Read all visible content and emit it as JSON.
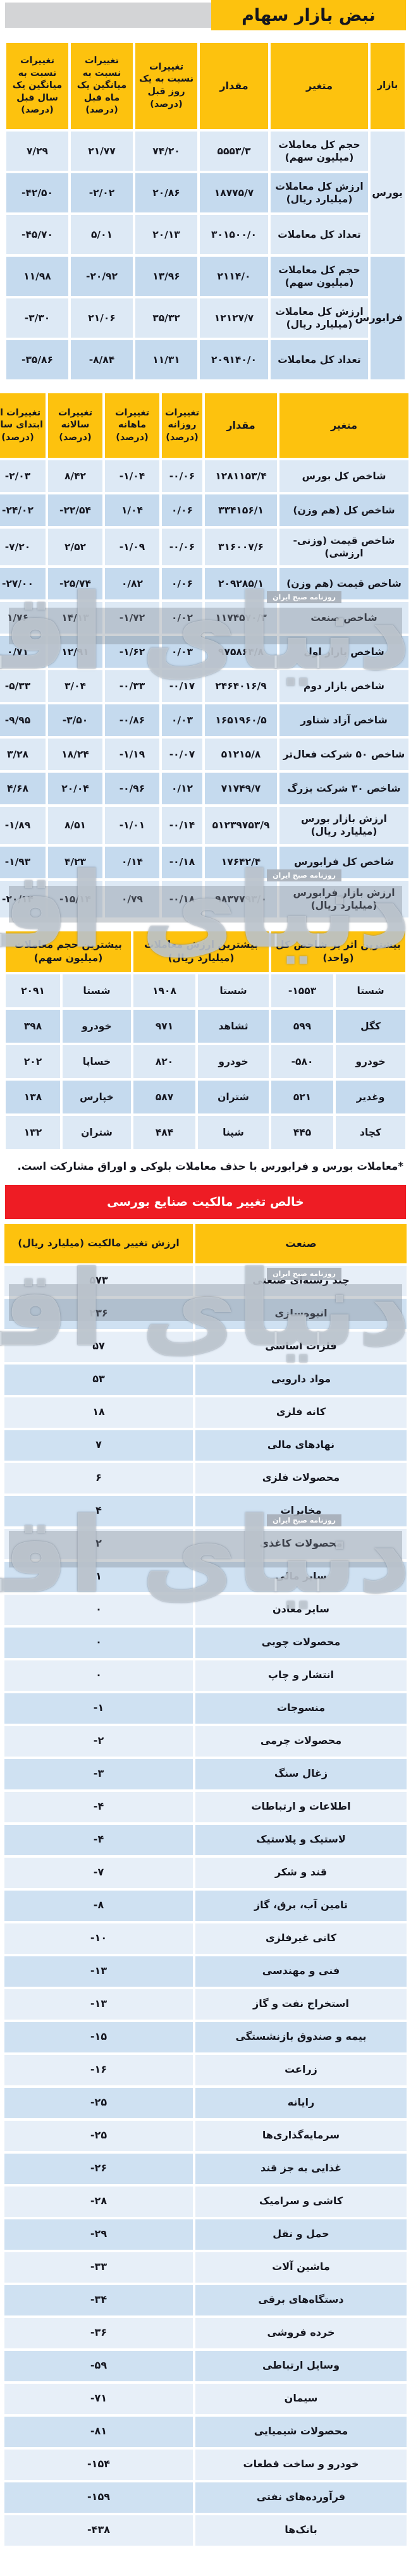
{
  "page": {
    "title": "نبض بازار سهام",
    "footnote": "*معاملات بورس و فرابورس با حذف معاملات بلوکی و اوراق مشارکت است.",
    "watermark": {
      "main": "دنیای اقتصاد",
      "sub": "روزنامه صبح ایران"
    }
  },
  "colors": {
    "header_yellow": "#fdc20e",
    "banner_red": "#ee1c24",
    "row_light": "#dde9f5",
    "row_dark": "#c5daee",
    "gray_bar": "#d3d4d6",
    "text": "#15161f"
  },
  "market_table": {
    "headers": [
      "بازار",
      "متغیر",
      "مقدار",
      "تغییرات نسبت به یک روز قبل (درصد)",
      "تغییرات نسبت به میانگین یک ماه قبل (درصد)",
      "تغییرات نسبت به میانگین یک سال قبل (درصد)"
    ],
    "groups": [
      {
        "market": "بورس",
        "rows": [
          [
            "حجم کل معاملات (میلیون سهم)",
            "۵۵۵۳/۳",
            "۷۴/۲۰",
            "۲۱/۷۷",
            "۷/۲۹"
          ],
          [
            "ارزش کل معاملات (میلیارد ریال)",
            "۱۸۷۷۵/۷",
            "۲۰/۸۶",
            "-۲/۰۲",
            "-۴۲/۵۰"
          ],
          [
            "تعداد کل معاملات",
            "۳۰۱۵۰۰/۰",
            "۲۰/۱۳",
            "۵/۰۱",
            "-۴۵/۷۰"
          ]
        ]
      },
      {
        "market": "فرابورس",
        "rows": [
          [
            "حجم کل معاملات (میلیون سهم)",
            "۲۱۱۴/۰",
            "۱۳/۹۶",
            "-۲۰/۹۲",
            "۱۱/۹۸"
          ],
          [
            "ارزش کل معاملات (میلیارد ریال)",
            "۱۲۱۲۷/۷",
            "۳۵/۳۲",
            "۲۱/۰۶",
            "-۳/۳۰"
          ],
          [
            "تعداد کل معاملات",
            "۲۰۹۱۴۰/۰",
            "۱۱/۳۱",
            "-۸/۸۴",
            "-۳۵/۸۶"
          ]
        ]
      }
    ]
  },
  "index_table": {
    "headers": [
      "متغیر",
      "مقدار",
      "تغییرات روزانه (درصد)",
      "تغییرات ماهانه (درصد)",
      "تغییرات سالانه (درصد)",
      "تغییرات از ابتدای سال (درصد)"
    ],
    "rows": [
      [
        "شاخص کل بورس",
        "۱۲۸۱۱۵۳/۴",
        "-۰/۰۶",
        "-۱/۰۴",
        "۸/۴۲",
        "-۲/۰۳"
      ],
      [
        "شاخص کل (هم وزن)",
        "۳۳۴۱۵۶/۱",
        "۰/۰۶",
        "۱/۰۴",
        "-۲۲/۵۴",
        "-۲۴/۰۲"
      ],
      [
        "شاخص قیمت (وزنی-ارزشی)",
        "۳۱۶۰۰۷/۶",
        "-۰/۰۶",
        "-۱/۰۹",
        "۲/۵۲",
        "-۷/۲۰"
      ],
      [
        "شاخص قیمت (هم وزن)",
        "۲۰۹۲۸۵/۱",
        "۰/۰۶",
        "۰/۸۲",
        "-۲۵/۷۴",
        "-۲۷/۰۰"
      ],
      [
        "شاخص صنعت",
        "۱۱۷۴۵۷۰/۳",
        "۰/۰۲",
        "-۱/۷۲",
        "۱۴/۱۳",
        "۱/۷۶"
      ],
      [
        "شاخص بازار اول",
        "۹۷۵۸۶۴/۸",
        "۰/۰۳",
        "-۱/۶۲",
        "۱۲/۹۱",
        "۰/۷۱"
      ],
      [
        "شاخص بازار دوم",
        "۲۴۶۴۰۱۶/۹",
        "-۰/۱۷",
        "-۰/۳۳",
        "۳/۰۴",
        "-۵/۳۳"
      ],
      [
        "شاخص آزاد شناور",
        "۱۶۵۱۹۶۰/۵",
        "۰/۰۳",
        "-۰/۸۶",
        "-۳/۵۰",
        "-۹/۹۵"
      ],
      [
        "شاخص ۵۰ شرکت فعال‌تر",
        "۵۱۲۱۵/۸",
        "-۰/۰۷",
        "-۱/۱۹",
        "۱۸/۲۴",
        "۳/۲۸"
      ],
      [
        "شاخص ۳۰ شرکت بزرگ",
        "۷۱۷۴۹/۷",
        "۰/۱۲",
        "-۰/۹۶",
        "۲۰/۰۴",
        "۴/۶۸"
      ],
      [
        "ارزش بازار بورس (میلیارد ریال)",
        "۵۱۲۳۹۷۵۳/۹",
        "-۰/۱۴",
        "-۱/۰۱",
        "۸/۵۱",
        "-۱/۸۹"
      ],
      [
        "شاخص کل فرابورس",
        "۱۷۶۴۲/۴",
        "-۰/۱۸",
        "۰/۱۴",
        "۴/۲۳",
        "-۱/۹۳"
      ],
      [
        "ارزش بازار فرابورس (میلیارد ریال)",
        "۹۸۳۷۷۹۳/۰",
        "-۰/۱۸",
        "۰/۷۹",
        "-۱۵/۱۴",
        "-۲۰/۱۴"
      ]
    ]
  },
  "top_table": {
    "group_headers": [
      "بیشترین اثر بر شاخص کل (واحد)",
      "بیشترین ارزش معاملات (میلیارد ریال)",
      "بیشترین حجم معاملات (میلیون سهم)"
    ],
    "rows": [
      [
        "شستا",
        "-۱۵۵۳",
        "شستا",
        "۱۹۰۸",
        "شستا",
        "۲۰۹۱"
      ],
      [
        "کگل",
        "۵۹۹",
        "ثشاهد",
        "۹۷۱",
        "خودرو",
        "۳۹۸"
      ],
      [
        "خودرو",
        "-۵۸۰",
        "خودرو",
        "۸۲۰",
        "خساپا",
        "۲۰۲"
      ],
      [
        "وغدیر",
        "۵۲۱",
        "شتران",
        "۵۸۷",
        "خپارس",
        "۱۳۸"
      ],
      [
        "کچاد",
        "۴۴۵",
        "شپنا",
        "۴۸۴",
        "شتران",
        "۱۳۲"
      ]
    ]
  },
  "ownership_table": {
    "title": "خالص تغییر مالکیت صنایع بورسی",
    "headers": [
      "صنعت",
      "ارزش تغییر مالکیت (میلیارد ریال)"
    ],
    "rows": [
      [
        "چند رشته‌ای صنعتی",
        "۵۷۳"
      ],
      [
        "انبوه‌سازی",
        "۲۳۶"
      ],
      [
        "فلزات اساسی",
        "۵۷"
      ],
      [
        "مواد دارویی",
        "۵۳"
      ],
      [
        "کانه فلزی",
        "۱۸"
      ],
      [
        "نهادهای مالی",
        "۷"
      ],
      [
        "محصولات فلزی",
        "۶"
      ],
      [
        "مخابرات",
        "۴"
      ],
      [
        "محصولات کاغذی",
        "۲"
      ],
      [
        "سایر مالی",
        "۱"
      ],
      [
        "سایر معادن",
        "۰"
      ],
      [
        "محصولات چوبی",
        "۰"
      ],
      [
        "انتشار و چاپ",
        "۰"
      ],
      [
        "منسوجات",
        "-۱"
      ],
      [
        "محصولات چرمی",
        "-۲"
      ],
      [
        "زغال سنگ",
        "-۳"
      ],
      [
        "اطلاعات و ارتباطات",
        "-۴"
      ],
      [
        "لاستیک و پلاستیک",
        "-۴"
      ],
      [
        "قند و شکر",
        "-۷"
      ],
      [
        "تامین آب، برق، گاز",
        "-۸"
      ],
      [
        "کانی غیرفلزی",
        "-۱۰"
      ],
      [
        "فنی و مهندسی",
        "-۱۳"
      ],
      [
        "استخراج نفت و گاز",
        "-۱۳"
      ],
      [
        "بیمه و صندوق بازنشستگی",
        "-۱۵"
      ],
      [
        "زراعت",
        "-۱۶"
      ],
      [
        "رایانه",
        "-۲۵"
      ],
      [
        "سرمایه‌گذاری‌ها",
        "-۲۵"
      ],
      [
        "غذایی به جز قند",
        "-۲۶"
      ],
      [
        "کاشی و سرامیک",
        "-۲۸"
      ],
      [
        "حمل و نقل",
        "-۲۹"
      ],
      [
        "ماشین آلات",
        "-۳۳"
      ],
      [
        "دستگاه‌های برقی",
        "-۳۴"
      ],
      [
        "خرده فروشی",
        "-۳۶"
      ],
      [
        "وسایل ارتباطی",
        "-۵۹"
      ],
      [
        "سیمان",
        "-۷۱"
      ],
      [
        "محصولات شیمیایی",
        "-۸۱"
      ],
      [
        "خودرو و ساخت قطعات",
        "-۱۵۴"
      ],
      [
        "فرآورده‌های نفتی",
        "-۱۵۹"
      ],
      [
        "بانک‌ها",
        "-۴۳۸"
      ]
    ]
  }
}
